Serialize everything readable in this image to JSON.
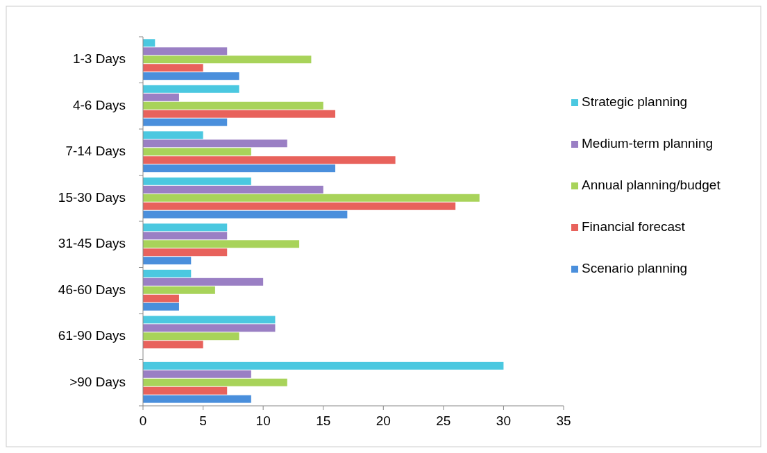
{
  "chart_data": {
    "type": "bar",
    "orientation": "horizontal",
    "categories": [
      "1-3 Days",
      "4-6 Days",
      "7-14 Days",
      "15-30 Days",
      "31-45 Days",
      "46-60 Days",
      "61-90 Days",
      ">90 Days"
    ],
    "series": [
      {
        "name": "Strategic planning",
        "color": "#4bc8e0",
        "values": [
          1,
          8,
          5,
          9,
          7,
          4,
          11,
          30
        ]
      },
      {
        "name": "Medium-term planning",
        "color": "#9a7fc4",
        "values": [
          7,
          3,
          12,
          15,
          7,
          10,
          11,
          9
        ]
      },
      {
        "name": "Annual planning/budget",
        "color": "#a8d35a",
        "values": [
          14,
          15,
          9,
          28,
          13,
          6,
          8,
          12
        ]
      },
      {
        "name": "Financial forecast",
        "color": "#e8625c",
        "values": [
          5,
          16,
          21,
          26,
          7,
          3,
          5,
          7
        ]
      },
      {
        "name": "Scenario planning",
        "color": "#4a8fdc",
        "values": [
          8,
          7,
          16,
          17,
          4,
          3,
          0,
          9
        ]
      }
    ],
    "xlim": [
      0,
      35
    ],
    "xticks": [
      0,
      5,
      10,
      15,
      20,
      25,
      30,
      35
    ],
    "grid": false,
    "legend": "right"
  }
}
